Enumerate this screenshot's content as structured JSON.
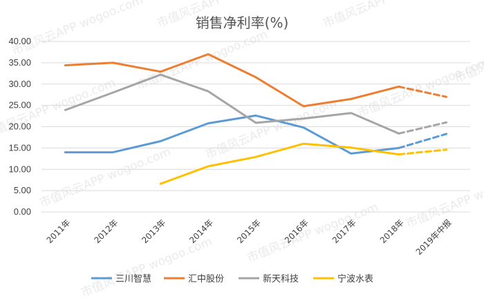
{
  "watermark_text": "市值风云APP wogoo.com",
  "chart_data": {
    "type": "line",
    "title": "销售净利率(%)",
    "xlabel": "",
    "ylabel": "",
    "categories": [
      "2011年",
      "2012年",
      "2013年",
      "2014年",
      "2015年",
      "2016年",
      "2017年",
      "2018年",
      "2019年中报"
    ],
    "ylim": [
      0,
      40
    ],
    "yticks": [
      "0.00",
      "5.00",
      "10.00",
      "15.00",
      "20.00",
      "25.00",
      "30.00",
      "35.00",
      "40.00"
    ],
    "grid": true,
    "legend_position": "bottom",
    "dashed_from_index": 7,
    "series": [
      {
        "name": "三川智慧",
        "color": "#5B9BD5",
        "values": [
          14.0,
          14.0,
          16.6,
          20.8,
          22.6,
          19.8,
          13.7,
          15.0,
          18.3
        ]
      },
      {
        "name": "汇中股份",
        "color": "#ED7D31",
        "values": [
          34.4,
          35.0,
          32.9,
          37.0,
          31.6,
          24.8,
          26.5,
          29.4,
          27.0
        ]
      },
      {
        "name": "新天科技",
        "color": "#A5A5A5",
        "values": [
          23.9,
          28.0,
          32.2,
          28.3,
          20.9,
          21.9,
          23.2,
          18.4,
          21.0
        ]
      },
      {
        "name": "宁波水表",
        "color": "#FFC000",
        "values": [
          null,
          null,
          6.6,
          10.7,
          12.9,
          16.0,
          15.1,
          13.5,
          14.6
        ]
      }
    ]
  }
}
